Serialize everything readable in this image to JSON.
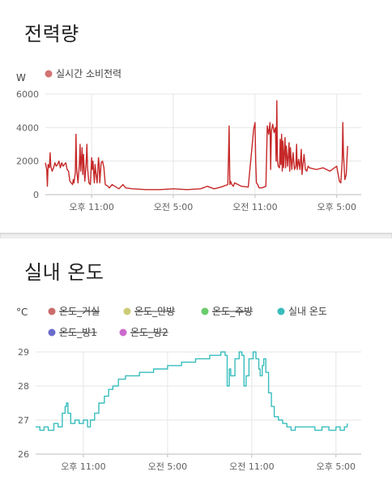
{
  "colors": {
    "power": "#c62828",
    "power_legend": "#d37373",
    "grid": "#e6e6e6",
    "axis": "#bdbdbd",
    "temp_living": "#cc6b6b",
    "temp_master": "#cccc77",
    "temp_kitchen": "#6bcc6b",
    "temp_indoor": "#38bdbd",
    "temp_room1": "#6b6bcc",
    "temp_room2": "#cc6bcc"
  },
  "power": {
    "title": "전력량",
    "unit": "W",
    "legend": [
      "실시간 소비전력"
    ]
  },
  "temperature": {
    "title": "실내 온도",
    "unit": "°C",
    "legend": [
      "온도_거실",
      "온도_안방",
      "온도_주방",
      "실내 온도",
      "온도_방1",
      "온도_방2"
    ]
  },
  "chart_data": [
    {
      "type": "line",
      "title": "전력량",
      "ylabel": "W",
      "ylim": [
        0,
        6000
      ],
      "yticks": [
        "0",
        "2000",
        "4000",
        "6000"
      ],
      "xlim": [
        19.6,
        42.8
      ],
      "xticks": [
        {
          "x": 23,
          "label": "오후 11:00"
        },
        {
          "x": 29,
          "label": "오전 5:00"
        },
        {
          "x": 35,
          "label": "오전 11:00"
        },
        {
          "x": 41,
          "label": "오후 5:00"
        }
      ],
      "grid": true,
      "legend_position": "top-left",
      "series": [
        {
          "name": "실시간 소비전력",
          "points": [
            [
              19.6,
              1900
            ],
            [
              19.7,
              1500
            ],
            [
              19.75,
              500
            ],
            [
              19.8,
              1800
            ],
            [
              19.9,
              1600
            ],
            [
              19.95,
              2500
            ],
            [
              20.0,
              1700
            ],
            [
              20.1,
              1400
            ],
            [
              20.2,
              1600
            ],
            [
              20.3,
              1900
            ],
            [
              20.4,
              1700
            ],
            [
              20.5,
              1800
            ],
            [
              20.6,
              2000
            ],
            [
              20.7,
              1600
            ],
            [
              20.8,
              1900
            ],
            [
              20.9,
              1700
            ],
            [
              21.0,
              1800
            ],
            [
              21.1,
              1900
            ],
            [
              21.2,
              1500
            ],
            [
              21.3,
              1400
            ],
            [
              21.4,
              800
            ],
            [
              21.5,
              700
            ],
            [
              21.6,
              600
            ],
            [
              21.65,
              900
            ],
            [
              21.7,
              700
            ],
            [
              21.8,
              1300
            ],
            [
              21.85,
              3600
            ],
            [
              21.9,
              1500
            ],
            [
              22.0,
              700
            ],
            [
              22.1,
              1800
            ],
            [
              22.15,
              3000
            ],
            [
              22.2,
              1400
            ],
            [
              22.3,
              2800
            ],
            [
              22.35,
              1200
            ],
            [
              22.4,
              2400
            ],
            [
              22.5,
              800
            ],
            [
              22.6,
              1900
            ],
            [
              22.65,
              3000
            ],
            [
              22.7,
              1600
            ],
            [
              22.8,
              700
            ],
            [
              22.9,
              600
            ],
            [
              23.0,
              2200
            ],
            [
              23.05,
              1500
            ],
            [
              23.1,
              2000
            ],
            [
              23.2,
              700
            ],
            [
              23.25,
              1800
            ],
            [
              23.3,
              1400
            ],
            [
              23.4,
              700
            ],
            [
              23.5,
              2200
            ],
            [
              23.55,
              1800
            ],
            [
              23.6,
              700
            ],
            [
              23.7,
              1900
            ],
            [
              23.8,
              2000
            ],
            [
              23.9,
              1600
            ],
            [
              24.0,
              600
            ],
            [
              24.2,
              500
            ],
            [
              24.3,
              400
            ],
            [
              24.5,
              600
            ],
            [
              24.7,
              500
            ],
            [
              25.0,
              350
            ],
            [
              25.3,
              600
            ],
            [
              25.5,
              400
            ],
            [
              26.0,
              350
            ],
            [
              27.0,
              300
            ],
            [
              28.0,
              300
            ],
            [
              29.0,
              350
            ],
            [
              30.0,
              300
            ],
            [
              31.0,
              350
            ],
            [
              31.5,
              500
            ],
            [
              32.0,
              350
            ],
            [
              32.5,
              450
            ],
            [
              33.0,
              600
            ],
            [
              33.05,
              2200
            ],
            [
              33.1,
              4100
            ],
            [
              33.15,
              600
            ],
            [
              33.2,
              800
            ],
            [
              33.3,
              600
            ],
            [
              33.4,
              500
            ],
            [
              33.5,
              700
            ],
            [
              34.0,
              500
            ],
            [
              34.5,
              450
            ],
            [
              34.9,
              3900
            ],
            [
              35.0,
              4300
            ],
            [
              35.05,
              2000
            ],
            [
              35.1,
              700
            ],
            [
              35.2,
              600
            ],
            [
              35.3,
              400
            ],
            [
              35.5,
              400
            ],
            [
              35.8,
              500
            ],
            [
              35.9,
              4100
            ],
            [
              36.0,
              3600
            ],
            [
              36.1,
              4300
            ],
            [
              36.15,
              1500
            ],
            [
              36.2,
              3800
            ],
            [
              36.3,
              4200
            ],
            [
              36.4,
              3700
            ],
            [
              36.5,
              4000
            ],
            [
              36.55,
              2000
            ],
            [
              36.6,
              5600
            ],
            [
              36.65,
              2000
            ],
            [
              36.7,
              1700
            ],
            [
              36.8,
              1600
            ],
            [
              36.85,
              3300
            ],
            [
              36.9,
              1800
            ],
            [
              36.95,
              3600
            ],
            [
              37.0,
              1400
            ],
            [
              37.05,
              3200
            ],
            [
              37.1,
              1600
            ],
            [
              37.2,
              3400
            ],
            [
              37.25,
              1600
            ],
            [
              37.3,
              2900
            ],
            [
              37.4,
              1700
            ],
            [
              37.5,
              3100
            ],
            [
              37.55,
              1400
            ],
            [
              37.6,
              2800
            ],
            [
              37.7,
              1500
            ],
            [
              37.8,
              2500
            ],
            [
              37.9,
              1500
            ],
            [
              38.0,
              1700
            ],
            [
              38.05,
              3000
            ],
            [
              38.1,
              1500
            ],
            [
              38.2,
              2100
            ],
            [
              38.3,
              1500
            ],
            [
              38.4,
              2700
            ],
            [
              38.45,
              1200
            ],
            [
              38.5,
              1600
            ],
            [
              38.6,
              2400
            ],
            [
              38.7,
              1500
            ],
            [
              38.8,
              1400
            ],
            [
              38.9,
              1700
            ],
            [
              39.0,
              1600
            ],
            [
              39.5,
              1500
            ],
            [
              40.0,
              1600
            ],
            [
              40.5,
              1400
            ],
            [
              41.0,
              1700
            ],
            [
              41.2,
              800
            ],
            [
              41.3,
              700
            ],
            [
              41.4,
              2000
            ],
            [
              41.45,
              4300
            ],
            [
              41.5,
              2400
            ],
            [
              41.6,
              900
            ],
            [
              41.7,
              1200
            ],
            [
              41.8,
              2900
            ]
          ]
        }
      ]
    },
    {
      "type": "line",
      "title": "실내 온도",
      "ylabel": "°C",
      "ylim": [
        26,
        29
      ],
      "yticks": [
        "26",
        "27",
        "28",
        "29"
      ],
      "xlim": [
        19.6,
        42.8
      ],
      "xticks": [
        {
          "x": 23,
          "label": "오후 11:00"
        },
        {
          "x": 29,
          "label": "오전 5:00"
        },
        {
          "x": 35,
          "label": "오전 11:00"
        },
        {
          "x": 41,
          "label": "오후 5:00"
        }
      ],
      "grid": true,
      "legend_position": "top-left",
      "series": [
        {
          "name": "온도_거실",
          "hidden": true,
          "points": []
        },
        {
          "name": "온도_안방",
          "hidden": true,
          "points": []
        },
        {
          "name": "온도_주방",
          "hidden": true,
          "points": []
        },
        {
          "name": "실내 온도",
          "hidden": false,
          "points": [
            [
              19.6,
              26.8
            ],
            [
              19.9,
              26.7
            ],
            [
              20.2,
              26.8
            ],
            [
              20.5,
              26.7
            ],
            [
              20.9,
              26.9
            ],
            [
              21.2,
              26.8
            ],
            [
              21.5,
              27.2
            ],
            [
              21.7,
              27.4
            ],
            [
              21.8,
              27.5
            ],
            [
              21.9,
              27.2
            ],
            [
              22.1,
              26.9
            ],
            [
              22.4,
              27.0
            ],
            [
              22.7,
              26.9
            ],
            [
              23.0,
              27.0
            ],
            [
              23.3,
              26.8
            ],
            [
              23.5,
              27.0
            ],
            [
              23.8,
              27.2
            ],
            [
              24.1,
              27.5
            ],
            [
              24.5,
              27.7
            ],
            [
              24.8,
              27.9
            ],
            [
              25.1,
              28.0
            ],
            [
              25.5,
              28.2
            ],
            [
              25.8,
              28.2
            ],
            [
              26.0,
              28.3
            ],
            [
              26.5,
              28.3
            ],
            [
              27.0,
              28.4
            ],
            [
              27.5,
              28.4
            ],
            [
              28.0,
              28.5
            ],
            [
              28.5,
              28.5
            ],
            [
              29.0,
              28.6
            ],
            [
              29.5,
              28.6
            ],
            [
              30.0,
              28.7
            ],
            [
              30.5,
              28.7
            ],
            [
              31.0,
              28.8
            ],
            [
              31.5,
              28.8
            ],
            [
              32.0,
              28.9
            ],
            [
              32.5,
              28.9
            ],
            [
              32.8,
              29.0
            ],
            [
              33.1,
              28.9
            ],
            [
              33.25,
              28.0
            ],
            [
              33.4,
              28.5
            ],
            [
              33.5,
              28.3
            ],
            [
              33.8,
              28.8
            ],
            [
              34.1,
              29.0
            ],
            [
              34.3,
              28.9
            ],
            [
              34.45,
              28.0
            ],
            [
              34.6,
              28.3
            ],
            [
              34.8,
              28.8
            ],
            [
              35.1,
              29.0
            ],
            [
              35.3,
              28.8
            ],
            [
              35.5,
              28.5
            ],
            [
              35.6,
              28.3
            ],
            [
              35.75,
              28.6
            ],
            [
              35.85,
              28.8
            ],
            [
              36.0,
              28.4
            ],
            [
              36.2,
              27.8
            ],
            [
              36.4,
              27.4
            ],
            [
              36.6,
              27.1
            ],
            [
              36.9,
              27.0
            ],
            [
              37.2,
              26.9
            ],
            [
              37.5,
              26.8
            ],
            [
              37.8,
              26.7
            ],
            [
              38.1,
              26.8
            ],
            [
              38.5,
              26.8
            ],
            [
              39.0,
              26.8
            ],
            [
              39.5,
              26.7
            ],
            [
              40.0,
              26.8
            ],
            [
              40.5,
              26.7
            ],
            [
              41.0,
              26.8
            ],
            [
              41.3,
              26.7
            ],
            [
              41.6,
              26.8
            ],
            [
              41.8,
              26.9
            ]
          ]
        },
        {
          "name": "온도_방1",
          "hidden": true,
          "points": []
        },
        {
          "name": "온도_방2",
          "hidden": true,
          "points": []
        }
      ]
    }
  ]
}
